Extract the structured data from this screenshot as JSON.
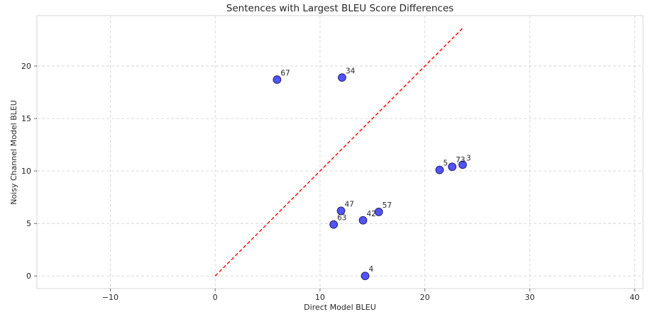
{
  "chart_data": {
    "type": "scatter",
    "title": "Sentences with Largest BLEU Score Differences",
    "xlabel": "Direct Model BLEU",
    "ylabel": "Noisy Channel Model BLEU",
    "xlim": [
      -17,
      40.8
    ],
    "ylim": [
      -1.2,
      24.8
    ],
    "xticks": [
      -10,
      0,
      10,
      20,
      30,
      40
    ],
    "yticks": [
      0,
      5,
      10,
      15,
      20
    ],
    "xtick_labels": [
      "−10",
      "0",
      "10",
      "20",
      "30",
      "40"
    ],
    "ytick_labels": [
      "0",
      "5",
      "10",
      "15",
      "20"
    ],
    "grid": true,
    "point_color": "#3b3bff",
    "reference_line": {
      "color": "#ff0000",
      "style": "dashed",
      "x": [
        0,
        23.6
      ],
      "y": [
        0,
        23.6
      ]
    },
    "points": [
      {
        "label": "67",
        "x": 5.9,
        "y": 18.7
      },
      {
        "label": "34",
        "x": 12.1,
        "y": 18.9
      },
      {
        "label": "5",
        "x": 21.4,
        "y": 10.1
      },
      {
        "label": "73",
        "x": 22.6,
        "y": 10.4
      },
      {
        "label": "3",
        "x": 23.6,
        "y": 10.6
      },
      {
        "label": "47",
        "x": 12.0,
        "y": 6.2
      },
      {
        "label": "57",
        "x": 15.6,
        "y": 6.1
      },
      {
        "label": "42",
        "x": 14.1,
        "y": 5.3
      },
      {
        "label": "63",
        "x": 11.3,
        "y": 4.9
      },
      {
        "label": "4",
        "x": 14.3,
        "y": 0.0
      }
    ]
  }
}
